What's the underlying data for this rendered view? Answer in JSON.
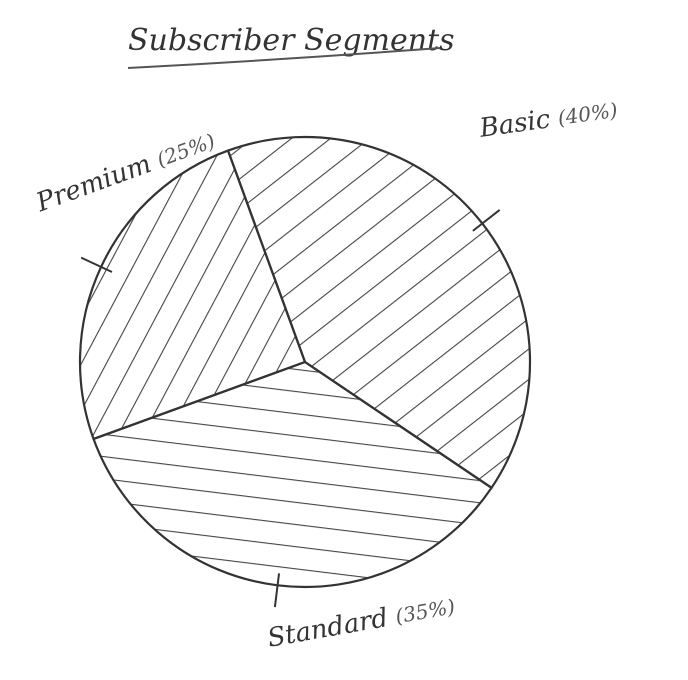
{
  "chart_data": {
    "type": "pie",
    "title": "Subscriber Segments",
    "categories": [
      "Premium",
      "Basic",
      "Standard"
    ],
    "values": [
      25,
      40,
      35
    ],
    "value_labels": [
      "(25%)",
      "(40%)",
      "(35%)"
    ]
  }
}
